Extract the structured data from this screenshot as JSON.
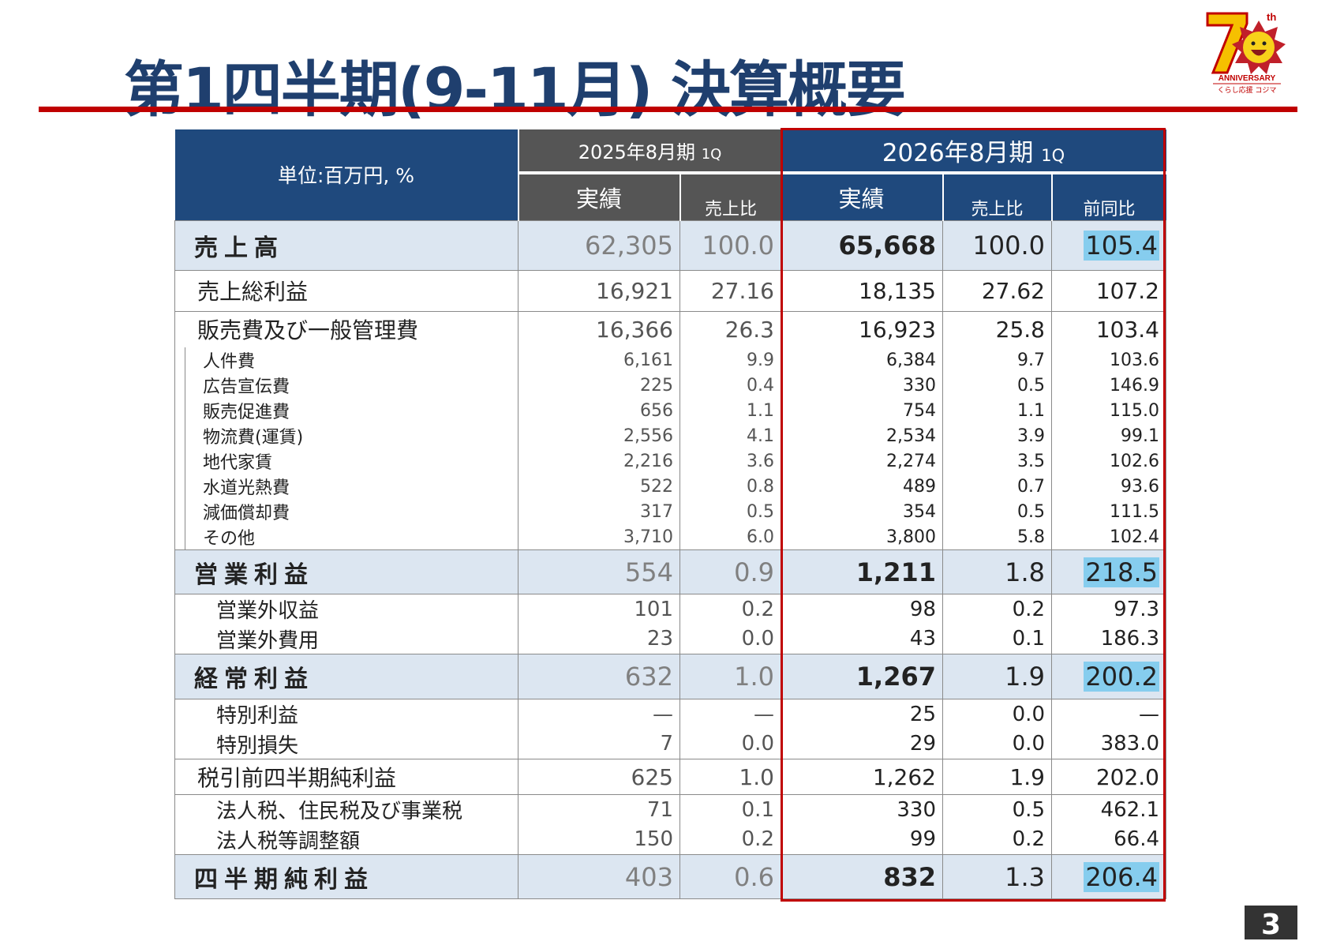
{
  "title": "第1四半期(9-11月) 決算概要",
  "logo": {
    "text_top": "70th",
    "text_mid": "ANNIVERSARY",
    "text_bottom": "くらし応援 コジマ"
  },
  "page_number": "3",
  "colors": {
    "header_blue": "#1f497d",
    "header_gray": "#555555",
    "accent_red": "#c00000",
    "highlight": "#86cdee",
    "row_blue": "#dce6f1"
  },
  "table": {
    "unit_label": "単位:百万円, %",
    "period_prev": "2025年8月期",
    "period_prev_q": "1Q",
    "period_curr": "2026年8月期",
    "period_curr_q": "1Q",
    "col_actual": "実績",
    "col_ratio": "売上比",
    "col_yoy": "前同比",
    "rows": [
      {
        "kind": "major",
        "label": "売上高",
        "v25": "62,305",
        "r25": "100.0",
        "v26": "65,668",
        "r26": "100.0",
        "yoy": "105.4",
        "hl": true
      },
      {
        "kind": "main",
        "label": "売上総利益",
        "v25": "16,921",
        "r25": "27.16",
        "v26": "18,135",
        "r26": "27.62",
        "yoy": "107.2"
      },
      {
        "kind": "main",
        "label": "販売費及び一般管理費",
        "v25": "16,366",
        "r25": "26.3",
        "v26": "16,923",
        "r26": "25.8",
        "yoy": "103.4"
      },
      {
        "kind": "sub",
        "label": "人件費",
        "v25": "6,161",
        "r25": "9.9",
        "v26": "6,384",
        "r26": "9.7",
        "yoy": "103.6"
      },
      {
        "kind": "sub",
        "label": "広告宣伝費",
        "v25": "225",
        "r25": "0.4",
        "v26": "330",
        "r26": "0.5",
        "yoy": "146.9"
      },
      {
        "kind": "sub",
        "label": "販売促進費",
        "v25": "656",
        "r25": "1.1",
        "v26": "754",
        "r26": "1.1",
        "yoy": "115.0"
      },
      {
        "kind": "sub",
        "label": "物流費(運賃)",
        "v25": "2,556",
        "r25": "4.1",
        "v26": "2,534",
        "r26": "3.9",
        "yoy": "99.1"
      },
      {
        "kind": "sub",
        "label": "地代家賃",
        "v25": "2,216",
        "r25": "3.6",
        "v26": "2,274",
        "r26": "3.5",
        "yoy": "102.6"
      },
      {
        "kind": "sub",
        "label": "水道光熱費",
        "v25": "522",
        "r25": "0.8",
        "v26": "489",
        "r26": "0.7",
        "yoy": "93.6"
      },
      {
        "kind": "sub",
        "label": "減価償却費",
        "v25": "317",
        "r25": "0.5",
        "v26": "354",
        "r26": "0.5",
        "yoy": "111.5"
      },
      {
        "kind": "sub",
        "label": "その他",
        "v25": "3,710",
        "r25": "6.0",
        "v26": "3,800",
        "r26": "5.8",
        "yoy": "102.4"
      },
      {
        "kind": "major",
        "label": "営業利益",
        "v25": "554",
        "r25": "0.9",
        "v26": "1,211",
        "r26": "1.8",
        "yoy": "218.5",
        "hl": true
      },
      {
        "kind": "sub2",
        "label": "営業外収益",
        "v25": "101",
        "r25": "0.2",
        "v26": "98",
        "r26": "0.2",
        "yoy": "97.3"
      },
      {
        "kind": "sub2",
        "label": "営業外費用",
        "v25": "23",
        "r25": "0.0",
        "v26": "43",
        "r26": "0.1",
        "yoy": "186.3"
      },
      {
        "kind": "major",
        "label": "経常利益",
        "v25": "632",
        "r25": "1.0",
        "v26": "1,267",
        "r26": "1.9",
        "yoy": "200.2",
        "hl": true
      },
      {
        "kind": "sub2",
        "label": "特別利益",
        "v25": "—",
        "r25": "—",
        "v26": "25",
        "r26": "0.0",
        "yoy": "—"
      },
      {
        "kind": "sub2",
        "label": "特別損失",
        "v25": "7",
        "r25": "0.0",
        "v26": "29",
        "r26": "0.0",
        "yoy": "383.0"
      },
      {
        "kind": "main",
        "label": "税引前四半期純利益",
        "v25": "625",
        "r25": "1.0",
        "v26": "1,262",
        "r26": "1.9",
        "yoy": "202.0"
      },
      {
        "kind": "sub2",
        "label": "法人税、住民税及び事業税",
        "v25": "71",
        "r25": "0.1",
        "v26": "330",
        "r26": "0.5",
        "yoy": "462.1"
      },
      {
        "kind": "sub2",
        "label": "法人税等調整額",
        "v25": "150",
        "r25": "0.2",
        "v26": "99",
        "r26": "0.2",
        "yoy": "66.4"
      },
      {
        "kind": "major",
        "label": "四半期純利益",
        "v25": "403",
        "r25": "0.6",
        "v26": "832",
        "r26": "1.3",
        "yoy": "206.4",
        "hl": true
      }
    ]
  }
}
